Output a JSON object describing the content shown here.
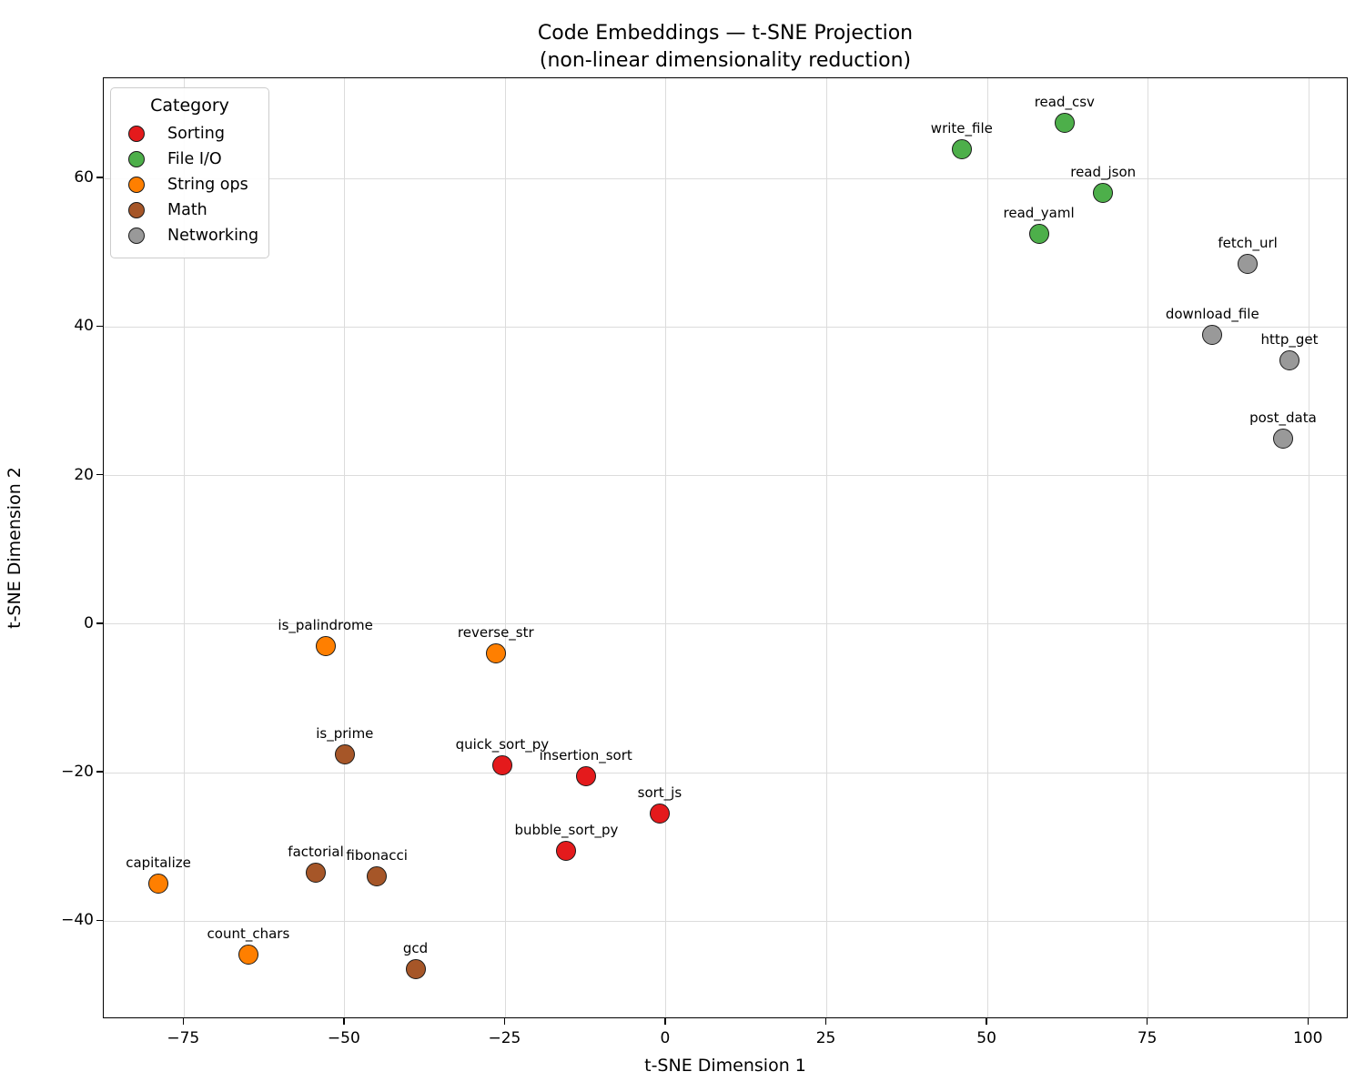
{
  "chart_data": {
    "type": "scatter",
    "title": "Code Embeddings — t-SNE Projection",
    "subtitle": "(non-linear dimensionality reduction)",
    "xlabel": "t-SNE Dimension 1",
    "ylabel": "t-SNE Dimension 2",
    "xlim": [
      -87.5,
      106.2
    ],
    "ylim": [
      -53.2,
      73.5
    ],
    "xticks": [
      {
        "value": -75,
        "label": "−75"
      },
      {
        "value": -50,
        "label": "−50"
      },
      {
        "value": -25,
        "label": "−25"
      },
      {
        "value": 0,
        "label": "0"
      },
      {
        "value": 25,
        "label": "25"
      },
      {
        "value": 50,
        "label": "50"
      },
      {
        "value": 75,
        "label": "75"
      },
      {
        "value": 100,
        "label": "100"
      }
    ],
    "yticks": [
      {
        "value": 60,
        "label": "60"
      },
      {
        "value": 40,
        "label": "40"
      },
      {
        "value": 20,
        "label": "20"
      },
      {
        "value": 0,
        "label": "0"
      },
      {
        "value": -20,
        "label": "−20"
      },
      {
        "value": -40,
        "label": "−40"
      }
    ],
    "grid": true,
    "legend": {
      "title": "Category",
      "position": "upper left"
    },
    "series": [
      {
        "name": "Sorting",
        "color": "#e41a1c",
        "points": [
          {
            "label": "quick_sort_py",
            "x": -25.5,
            "y": -19
          },
          {
            "label": "insertion_sort",
            "x": -12.5,
            "y": -20.5
          },
          {
            "label": "sort_js",
            "x": -1,
            "y": -25.5
          },
          {
            "label": "bubble_sort_py",
            "x": -15.5,
            "y": -30.5
          }
        ]
      },
      {
        "name": "File I/O",
        "color": "#4daf4a",
        "points": [
          {
            "label": "write_file",
            "x": 46,
            "y": 64
          },
          {
            "label": "read_csv",
            "x": 62,
            "y": 67.5
          },
          {
            "label": "read_json",
            "x": 68,
            "y": 58
          },
          {
            "label": "read_yaml",
            "x": 58,
            "y": 52.5
          }
        ]
      },
      {
        "name": "String ops",
        "color": "#ff7f00",
        "points": [
          {
            "label": "is_palindrome",
            "x": -53,
            "y": -3
          },
          {
            "label": "reverse_str",
            "x": -26.5,
            "y": -4
          },
          {
            "label": "capitalize",
            "x": -79,
            "y": -35
          },
          {
            "label": "count_chars",
            "x": -65,
            "y": -44.5
          }
        ]
      },
      {
        "name": "Math",
        "color": "#a65628",
        "points": [
          {
            "label": "is_prime",
            "x": -50,
            "y": -17.5
          },
          {
            "label": "factorial",
            "x": -54.5,
            "y": -33.5
          },
          {
            "label": "fibonacci",
            "x": -45,
            "y": -34
          },
          {
            "label": "gcd",
            "x": -39,
            "y": -46.5
          }
        ]
      },
      {
        "name": "Networking",
        "color": "#999999",
        "points": [
          {
            "label": "fetch_url",
            "x": 90.5,
            "y": 48.5
          },
          {
            "label": "download_file",
            "x": 85,
            "y": 39
          },
          {
            "label": "http_get",
            "x": 97,
            "y": 35.5
          },
          {
            "label": "post_data",
            "x": 96,
            "y": 25
          }
        ]
      }
    ]
  }
}
